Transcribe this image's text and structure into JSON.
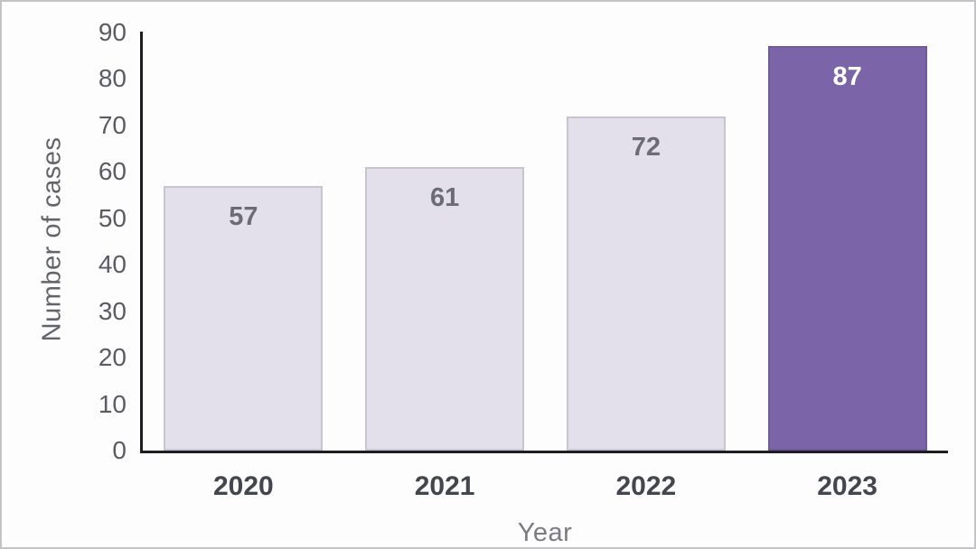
{
  "chart_data": {
    "type": "bar",
    "title": "",
    "xlabel": "Year",
    "ylabel": "Number of cases",
    "categories": [
      "2020",
      "2021",
      "2022",
      "2023"
    ],
    "values": [
      57,
      61,
      72,
      87
    ],
    "data_labels": [
      "57",
      "61",
      "72",
      "87"
    ],
    "ylim": [
      0,
      90
    ],
    "yticks": [
      0,
      10,
      20,
      30,
      40,
      50,
      60,
      70,
      80,
      90
    ],
    "highlight_index": 3,
    "grid": false,
    "legend_position": "none",
    "colors": {
      "bar_fill": "#e4e0eb",
      "bar_border": "#c9c4d2",
      "highlight_fill": "#7b64a8",
      "highlight_border": "#6f5a99",
      "bar_label": "#6b6c74",
      "highlight_bar_label": "#ffffff",
      "axis_line": "#1e1e22",
      "tick_label": "#5b5c62"
    }
  }
}
